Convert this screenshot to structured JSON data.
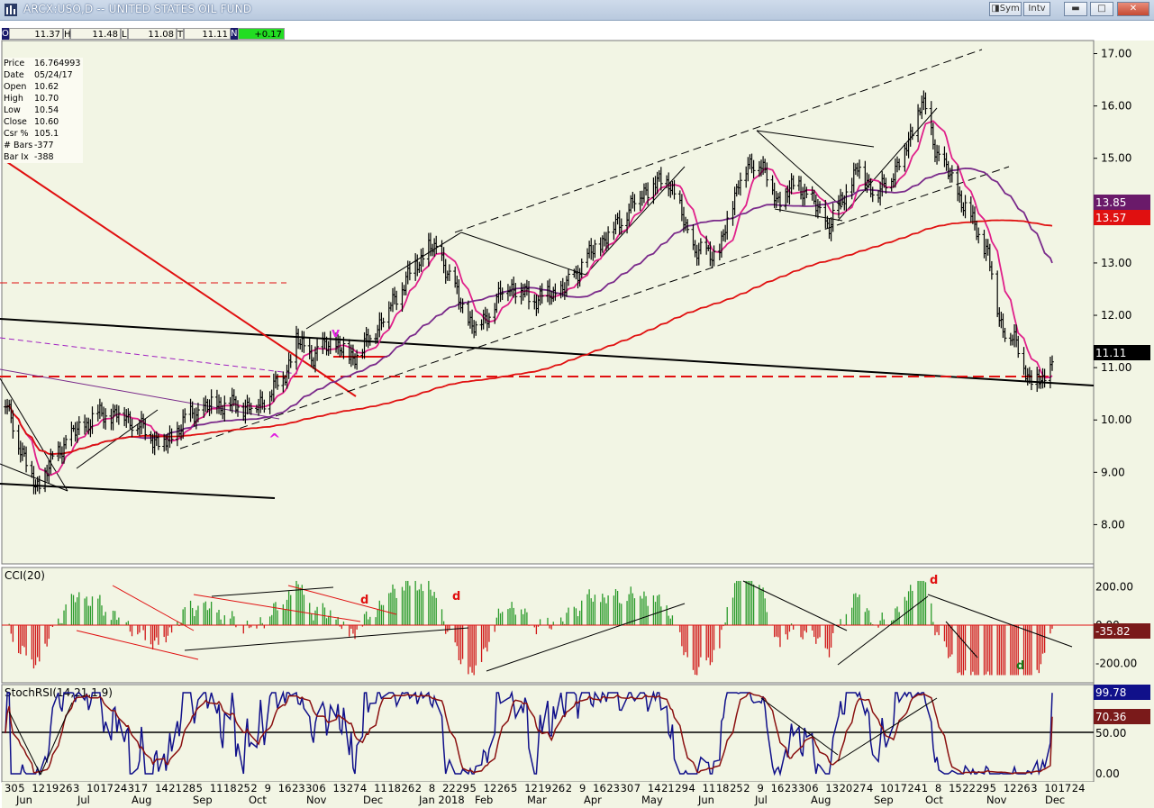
{
  "window": {
    "title": "ARCX:USO,D -- UNITED STATES OIL FUND",
    "sym_label": "Sym",
    "intv_label": "Intv"
  },
  "ohlc_bar": {
    "o_label": "O",
    "o_value": "11.37",
    "h_label": "H",
    "h_value": "11.48",
    "l_label": "L",
    "l_value": "11.08",
    "t_label": "T",
    "t_value": "11.11",
    "n_label": "N",
    "n_value": "+0.17"
  },
  "info_box": [
    {
      "label": "Price",
      "value": "16.764993"
    },
    {
      "label": "Date",
      "value": "05/24/17"
    },
    {
      "label": "Open",
      "value": "10.62"
    },
    {
      "label": "High",
      "value": "10.70"
    },
    {
      "label": "Low",
      "value": "10.54"
    },
    {
      "label": "Close",
      "value": "10.60"
    },
    {
      "label": "Csr %",
      "value": "105.1"
    },
    {
      "label": "# Bars",
      "value": "-377"
    },
    {
      "label": "Bar Ix",
      "value": "-388"
    }
  ],
  "colors": {
    "chart_bg": "#f2f5e4",
    "price_bars": "#000000",
    "ma_fast": "#e0208a",
    "ma_mid": "#7a2a8a",
    "ma_slow": "#e01010",
    "cci_pos": "#2a9a2a",
    "cci_neg": "#d01818",
    "stoch_k": "#10108a",
    "stoch_d": "#8a1010",
    "ohlc_bg": "#f5f5e8",
    "n_bg": "#22dd22"
  },
  "chart_data": [
    {
      "type": "ohlc",
      "title": "ARCX:USO,D -- UNITED STATES OIL FUND",
      "y_ticks": [
        "17.00",
        "16.00",
        "15.00",
        "14.00",
        "13.00",
        "12.00",
        "11.00",
        "10.00",
        "9.00",
        "8.00"
      ],
      "ylim": [
        7.25,
        17.25
      ],
      "price_path": [
        [
          "2017-06-05",
          10.3
        ],
        [
          "2017-06-21",
          8.7
        ],
        [
          "2017-07-07",
          9.6
        ],
        [
          "2017-07-24",
          10.1
        ],
        [
          "2017-08-07",
          10.1
        ],
        [
          "2017-08-28",
          9.5
        ],
        [
          "2017-09-11",
          10.1
        ],
        [
          "2017-09-25",
          10.3
        ],
        [
          "2017-10-16",
          10.25
        ],
        [
          "2017-10-30",
          10.8
        ],
        [
          "2017-11-06",
          11.5
        ],
        [
          "2017-11-15",
          11.2
        ],
        [
          "2017-11-24",
          11.5
        ],
        [
          "2017-12-04",
          11.2
        ],
        [
          "2017-12-11",
          11.35
        ],
        [
          "2017-12-26",
          12.2
        ],
        [
          "2018-01-05",
          12.8
        ],
        [
          "2018-01-15",
          13.3
        ],
        [
          "2018-01-22",
          13.1
        ],
        [
          "2018-02-01",
          12.2
        ],
        [
          "2018-02-09",
          11.7
        ],
        [
          "2018-02-26",
          12.6
        ],
        [
          "2018-03-12",
          12.3
        ],
        [
          "2018-03-28",
          12.5
        ],
        [
          "2018-04-09",
          13.1
        ],
        [
          "2018-04-26",
          13.8
        ],
        [
          "2018-05-09",
          14.4
        ],
        [
          "2018-05-22",
          14.6
        ],
        [
          "2018-06-05",
          13.2
        ],
        [
          "2018-06-18",
          13.2
        ],
        [
          "2018-06-28",
          14.6
        ],
        [
          "2018-07-09",
          15.0
        ],
        [
          "2018-07-18",
          14.2
        ],
        [
          "2018-07-30",
          14.5
        ],
        [
          "2018-08-15",
          13.7
        ],
        [
          "2018-08-30",
          14.8
        ],
        [
          "2018-09-10",
          14.3
        ],
        [
          "2018-09-24",
          15.1
        ],
        [
          "2018-10-03",
          16.1
        ],
        [
          "2018-10-10",
          15.2
        ],
        [
          "2018-10-24",
          14.2
        ],
        [
          "2018-11-07",
          13.2
        ],
        [
          "2018-11-13",
          11.9
        ],
        [
          "2018-11-21",
          11.5
        ],
        [
          "2018-11-29",
          10.8
        ],
        [
          "2018-12-06",
          10.7
        ],
        [
          "2018-12-11",
          11.11
        ]
      ],
      "last_close": 11.11,
      "ma_fast_last": 11.11,
      "ma_mid_last": 13.85,
      "ma_slow_last": 13.57,
      "price_badges": [
        {
          "value": "11.11",
          "color": "#000000"
        },
        {
          "value": "13.85",
          "color": "#6a1a6a"
        },
        {
          "value": "13.57",
          "color": "#e01010"
        }
      ],
      "annotations": [
        {
          "text": "v",
          "color": "#e020e0"
        },
        {
          "text": "^",
          "color": "#e020e0"
        }
      ],
      "horizontal_support": 10.65
    },
    {
      "type": "bar",
      "name": "CCI(20)",
      "y_ticks": [
        "200.00",
        "0.00",
        "-200.00"
      ],
      "ylim": [
        -300,
        300
      ],
      "last_value": "-35.82",
      "annotations": [
        {
          "text": "d",
          "color": "#e01010"
        },
        {
          "text": "d",
          "color": "#e01010"
        },
        {
          "text": "d",
          "color": "#e01010"
        },
        {
          "text": "d",
          "color": "#1a7a1a"
        }
      ]
    },
    {
      "type": "line",
      "name": "StochRSI(14,21,1,9)",
      "y_ticks": [
        "100.00",
        "50.00",
        "0.00"
      ],
      "ylim": [
        -10,
        110
      ],
      "last_k": "99.78",
      "last_d": "70.36"
    }
  ],
  "x_axis": {
    "day_labels": [
      "30",
      "5",
      "12",
      "19",
      "26",
      "3",
      "10",
      "17",
      "24",
      "31",
      "7",
      "14",
      "21",
      "28",
      "5",
      "11",
      "18",
      "25",
      "2",
      "9",
      "16",
      "23",
      "30",
      "6",
      "13",
      "27",
      "4",
      "11",
      "18",
      "26",
      "2",
      "8",
      "22",
      "29",
      "5",
      "12",
      "26",
      "5",
      "12",
      "19",
      "26",
      "2",
      "9",
      "16",
      "23",
      "30",
      "7",
      "14",
      "21",
      "29",
      "4",
      "11",
      "18",
      "25",
      "2",
      "9",
      "16",
      "23",
      "30",
      "6",
      "13",
      "20",
      "27",
      "4",
      "10",
      "17",
      "24",
      "1",
      "8",
      "15",
      "22",
      "29",
      "5",
      "12",
      "26",
      "3",
      "10",
      "17",
      "24"
    ],
    "month_labels": [
      "Jun",
      "Jul",
      "Aug",
      "Sep",
      "Oct",
      "Nov",
      "Dec",
      "Jan 2018",
      "Feb",
      "Mar",
      "Apr",
      "May",
      "Jun",
      "Jul",
      "Aug",
      "Sep",
      "Oct",
      "Nov",
      "Dec"
    ]
  }
}
